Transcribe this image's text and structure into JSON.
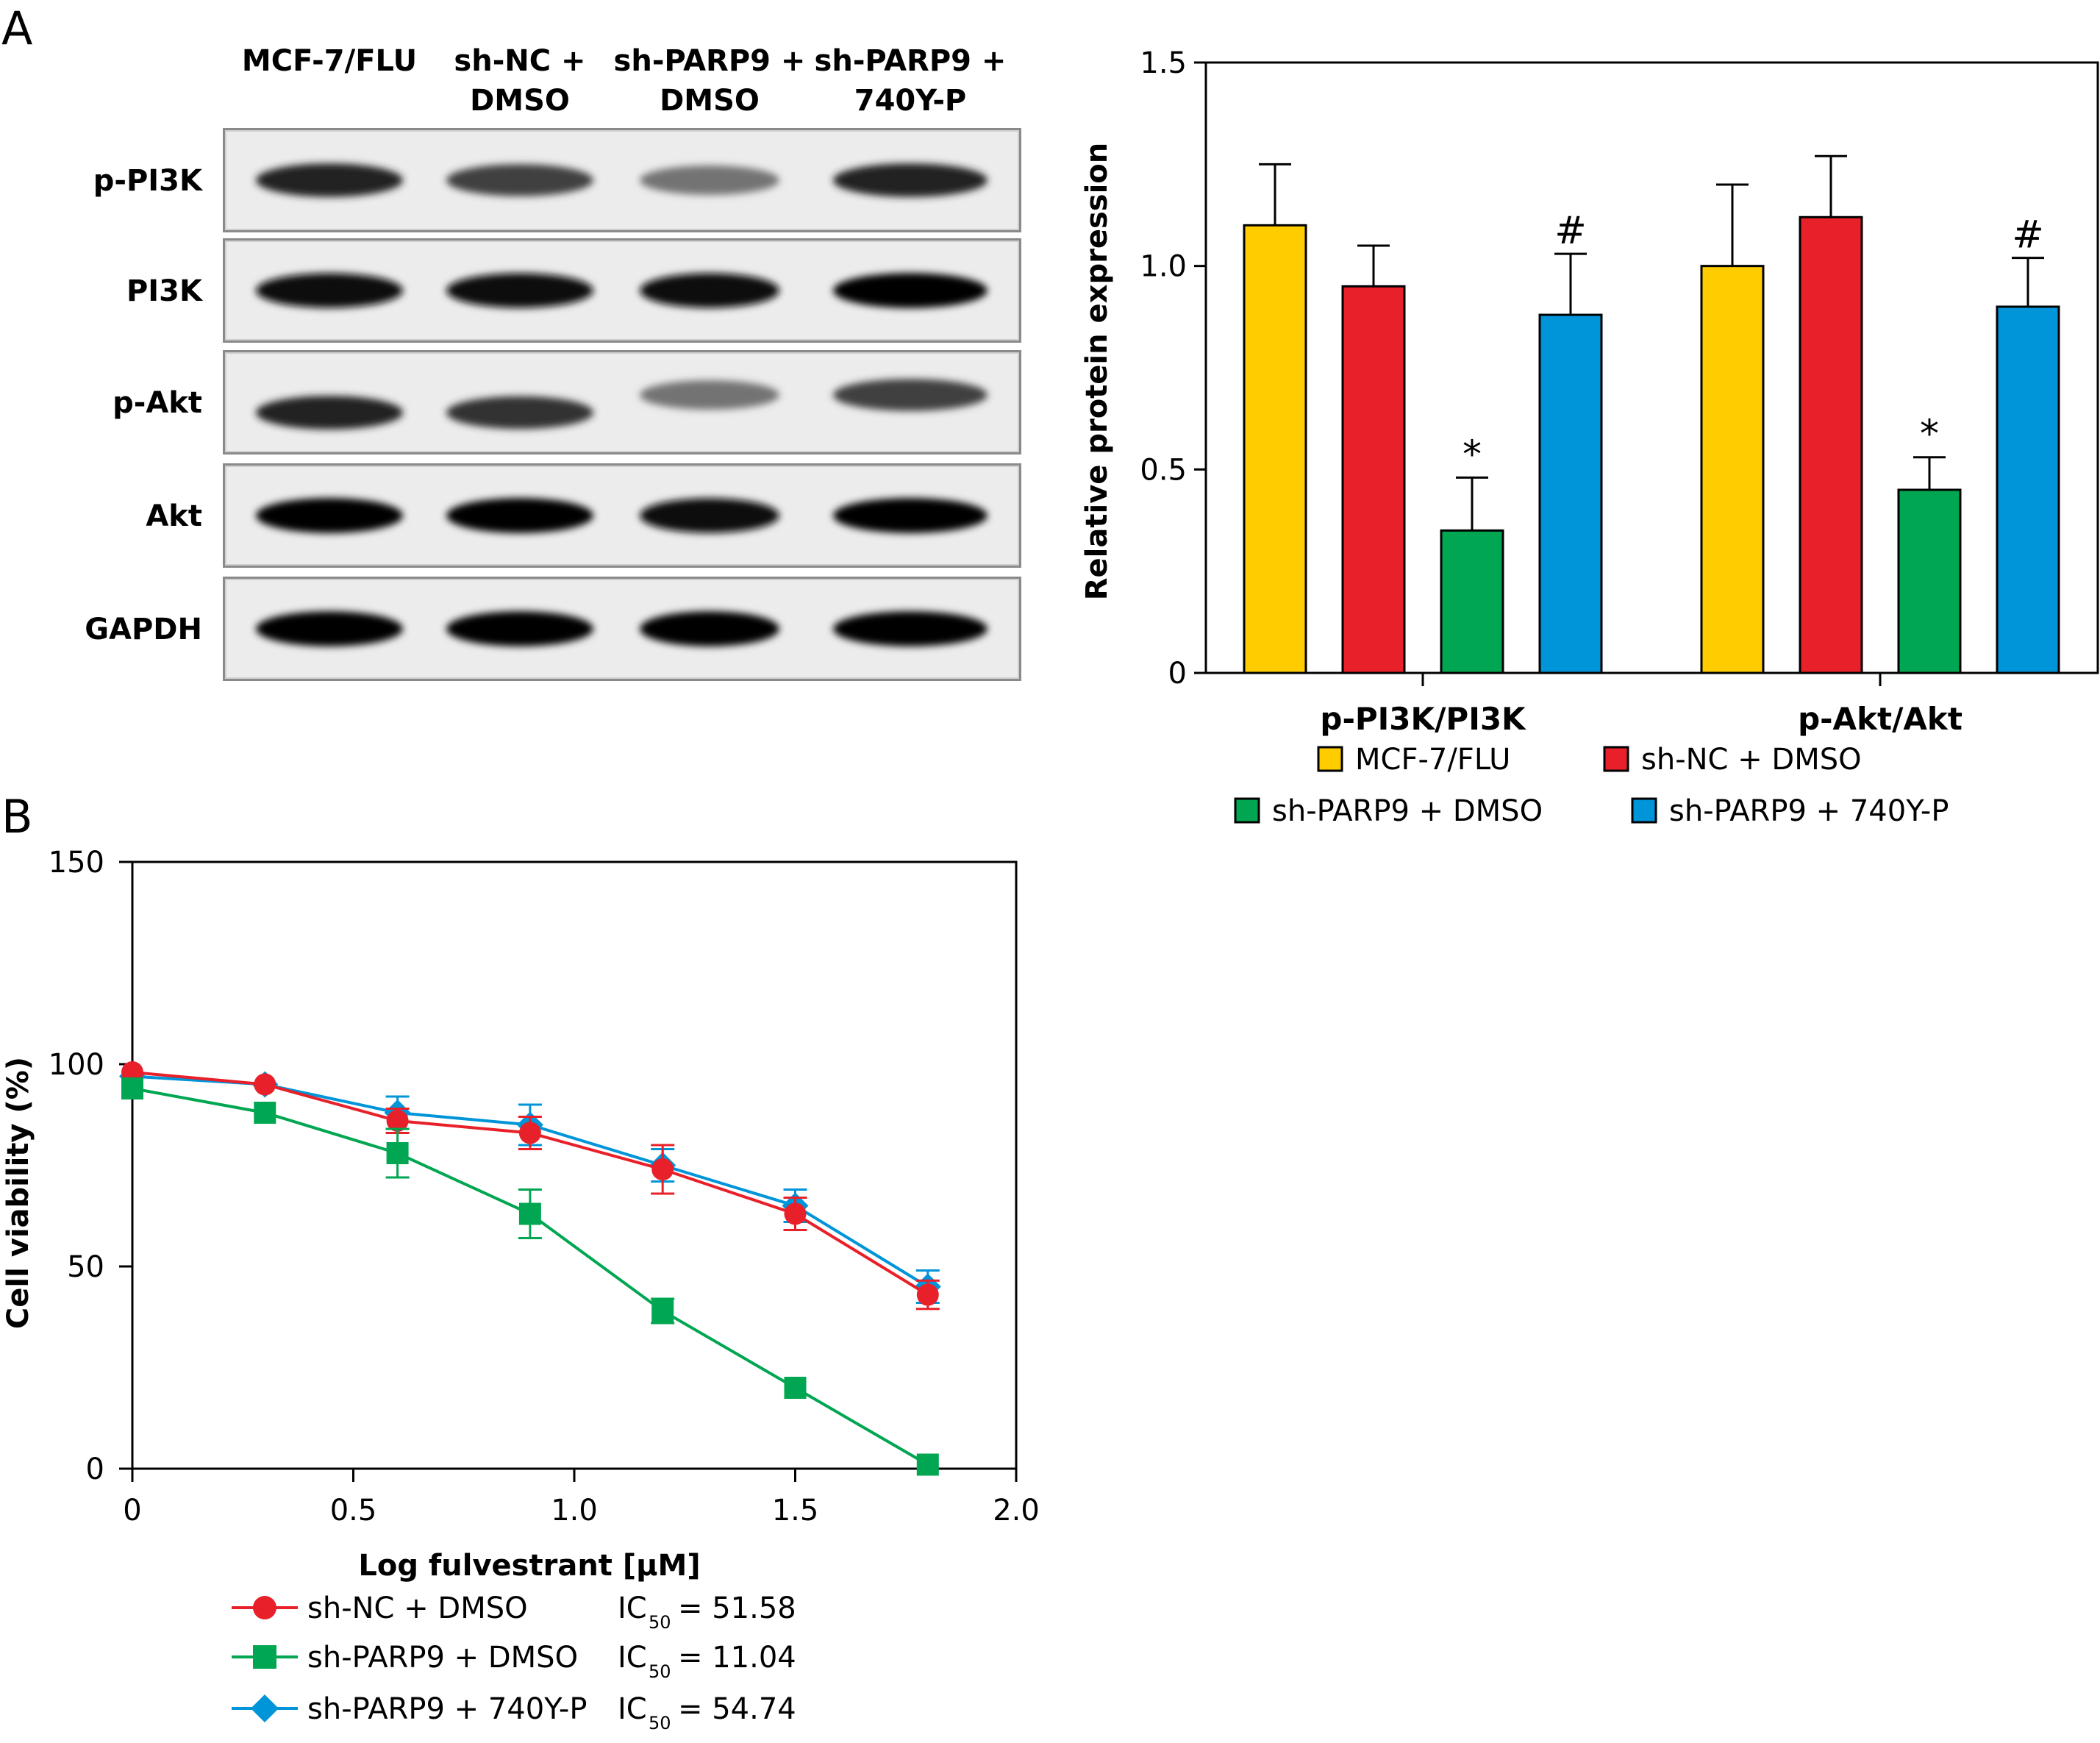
{
  "panel_a": {
    "label": "A",
    "blot": {
      "lanes": [
        {
          "line1": "MCF-7/FLU",
          "line2": ""
        },
        {
          "line1": "sh-NC +",
          "line2": "DMSO"
        },
        {
          "line1": "sh-PARP9 +",
          "line2": "DMSO"
        },
        {
          "line1": "sh-PARP9 +",
          "line2": "740Y-P"
        }
      ],
      "rows": [
        {
          "label": "p-PI3K",
          "intensity": [
            0.85,
            0.72,
            0.5,
            0.85
          ]
        },
        {
          "label": "PI3K",
          "intensity": [
            0.95,
            0.95,
            0.95,
            0.98
          ]
        },
        {
          "label": "p-Akt",
          "intensity": [
            0.85,
            0.78,
            0.5,
            0.72
          ]
        },
        {
          "label": "Akt",
          "intensity": [
            0.98,
            0.98,
            0.95,
            0.98
          ]
        },
        {
          "label": "GAPDH",
          "intensity": [
            0.98,
            0.98,
            0.98,
            0.98
          ]
        }
      ]
    }
  },
  "panel_b": {
    "label": "B"
  },
  "chart_data": [
    {
      "type": "bar",
      "ylabel": "Relative protein expression",
      "ylim": [
        0,
        1.5
      ],
      "yticks": [
        "0",
        "0.5",
        "1.0",
        "1.5"
      ],
      "categories": [
        "p-PI3K/PI3K",
        "p-Akt/Akt"
      ],
      "series": [
        {
          "name": "MCF-7/FLU",
          "color": "#FFCC00",
          "values": [
            1.1,
            1.0
          ],
          "errors": [
            0.15,
            0.2
          ],
          "marks": [
            "",
            ""
          ]
        },
        {
          "name": "sh-NC + DMSO",
          "color": "#E8202A",
          "values": [
            0.95,
            1.12
          ],
          "errors": [
            0.1,
            0.15
          ],
          "marks": [
            "",
            ""
          ]
        },
        {
          "name": "sh-PARP9 + DMSO",
          "color": "#00A651",
          "values": [
            0.35,
            0.45
          ],
          "errors": [
            0.13,
            0.08
          ],
          "marks": [
            "*",
            "*"
          ]
        },
        {
          "name": "sh-PARP9 + 740Y-P",
          "color": "#0094D9",
          "values": [
            0.88,
            0.9
          ],
          "errors": [
            0.15,
            0.12
          ],
          "marks": [
            "#",
            "#"
          ]
        }
      ],
      "legend": "bottom"
    },
    {
      "type": "line",
      "xlabel": "Log fulvestrant [μM]",
      "ylabel": "Cell viability (%)",
      "xlim": [
        0,
        2.0
      ],
      "ylim": [
        0,
        150
      ],
      "xticks": [
        "0",
        "0.5",
        "1.0",
        "1.5",
        "2.0"
      ],
      "yticks": [
        "0",
        "50",
        "100",
        "150"
      ],
      "series": [
        {
          "name": "sh-NC + DMSO",
          "color": "#E8202A",
          "marker": "circle",
          "x": [
            0,
            0.3,
            0.6,
            0.9,
            1.2,
            1.5,
            1.8
          ],
          "y": [
            98,
            95,
            86,
            83,
            74,
            63,
            43
          ],
          "err": [
            0,
            0,
            3,
            4,
            6,
            4,
            3.5
          ],
          "ic50_label": "IC",
          "ic50_sub": "50",
          "ic50_value": "= 51.58"
        },
        {
          "name": "sh-PARP9 + DMSO",
          "color": "#00A651",
          "marker": "square",
          "x": [
            0,
            0.3,
            0.6,
            0.9,
            1.2,
            1.5,
            1.8
          ],
          "y": [
            94,
            88,
            78,
            63,
            39,
            20,
            1
          ],
          "err": [
            0,
            0,
            6,
            6,
            3,
            0,
            0
          ],
          "ic50_label": "IC",
          "ic50_sub": "50",
          "ic50_value": "= 11.04"
        },
        {
          "name": "sh-PARP9 + 740Y-P",
          "color": "#0094D9",
          "marker": "diamond",
          "x": [
            0,
            0.3,
            0.6,
            0.9,
            1.2,
            1.5,
            1.8
          ],
          "y": [
            97,
            95,
            88,
            85,
            75,
            65,
            45
          ],
          "err": [
            0,
            0,
            4,
            5,
            4,
            4,
            4
          ],
          "ic50_label": "IC",
          "ic50_sub": "50",
          "ic50_value": "= 54.74"
        }
      ],
      "legend": "bottom-left"
    }
  ]
}
